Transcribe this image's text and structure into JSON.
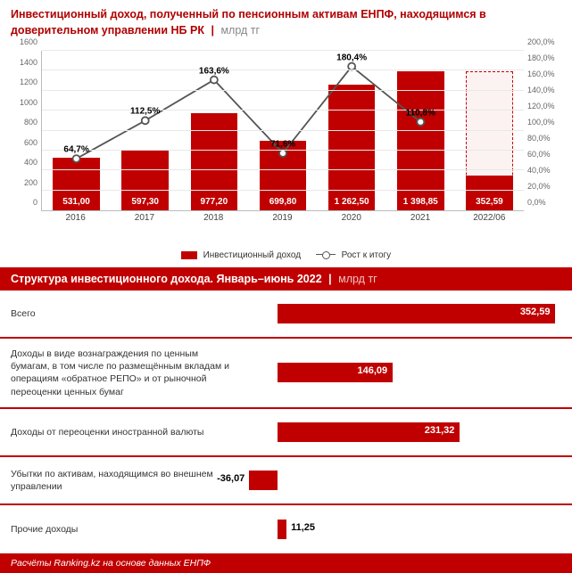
{
  "colors": {
    "primary": "#c00000",
    "text_gray": "#888",
    "bg": "#ffffff",
    "grid": "#e8e8e8",
    "axis": "#bbbbbb",
    "line": "#555555"
  },
  "title": {
    "main": "Инвестиционный доход, полученный по пенсионным активам ЕНПФ, находящимся в доверительном управлении НБ РК",
    "unit": "млрд тг"
  },
  "chart": {
    "type": "bar+line",
    "categories": [
      "2016",
      "2017",
      "2018",
      "2019",
      "2020",
      "2021",
      "2022/06"
    ],
    "bars": {
      "values": [
        531.0,
        597.3,
        977.2,
        699.8,
        1262.5,
        1398.85,
        352.59
      ],
      "labels": [
        "531,00",
        "597,30",
        "977,20",
        "699,80",
        "1 262,50",
        "1 398,85",
        "352,59"
      ],
      "color": "#c00000",
      "last_is_partial": true,
      "dashed_height": 1398.85
    },
    "line": {
      "values_pct": [
        64.7,
        112.5,
        163.6,
        71.6,
        180.4,
        110.8
      ],
      "labels": [
        "64,7%",
        "112,5%",
        "163,6%",
        "71,6%",
        "180,4%",
        "110,8%"
      ],
      "color": "#555555",
      "marker": "circle"
    },
    "y_left": {
      "min": 0,
      "max": 1600,
      "step": 200,
      "ticks": [
        "0",
        "200",
        "400",
        "600",
        "800",
        "1000",
        "1200",
        "1400",
        "1600"
      ]
    },
    "y_right": {
      "min": 0,
      "max": 200,
      "step": 20,
      "ticks": [
        "0,0%",
        "20,0%",
        "40,0%",
        "60,0%",
        "80,0%",
        "100,0%",
        "120,0%",
        "140,0%",
        "160,0%",
        "180,0%",
        "200,0%"
      ]
    },
    "legend": {
      "bar": "Инвестиционный доход",
      "line": "Рост к итогу"
    }
  },
  "section2": {
    "title": "Структура инвестиционного дохода. Январь–июнь 2022",
    "unit": "млрд тг",
    "axis_min": -50,
    "axis_max": 360,
    "zero_at": 50,
    "rows": [
      {
        "label": "Всего",
        "value": 352.59,
        "value_label": "352,59",
        "label_inside": true
      },
      {
        "label": "Доходы в виде вознаграждения по ценным бумагам, в том числе по размещённым вкладам и операциям «обратное РЕПО» и от рыночной переоценки ценных бумаг",
        "value": 146.09,
        "value_label": "146,09",
        "label_inside": true
      },
      {
        "label": "Доходы от переоценки иностранной валюты",
        "value": 231.32,
        "value_label": "231,32",
        "label_inside": true
      },
      {
        "label": "Убытки по активам, находящимся во внешнем управлении",
        "value": -36.07,
        "value_label": "-36,07",
        "label_inside": false
      },
      {
        "label": "Прочие доходы",
        "value": 11.25,
        "value_label": "11,25",
        "label_inside": false
      }
    ]
  },
  "footer": "Расчёты Ranking.kz на основе данных ЕНПФ"
}
